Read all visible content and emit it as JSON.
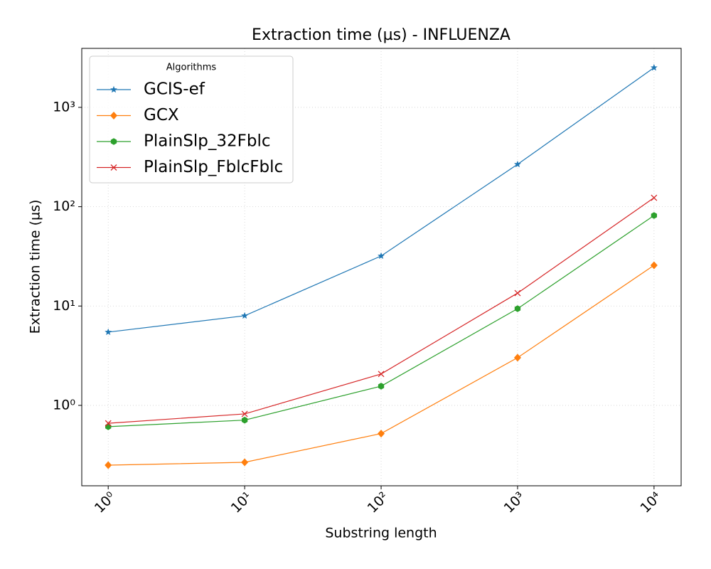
{
  "chart_data": {
    "type": "line",
    "title": "Extraction time (µs) - INFLUENZA",
    "xlabel": "Substring length",
    "ylabel": "Extraction time (µs)",
    "xscale": "log",
    "yscale": "log",
    "grid": true,
    "legend_title": "Algorithms",
    "legend_loc": "upper left",
    "x": [
      1,
      10,
      100,
      1000,
      10000
    ],
    "xlim": [
      0.64,
      15800
    ],
    "ylim": [
      0.155,
      3925
    ],
    "xticks": [
      {
        "value": 1,
        "label": "10⁰"
      },
      {
        "value": 10,
        "label": "10¹"
      },
      {
        "value": 100,
        "label": "10²"
      },
      {
        "value": 1000,
        "label": "10³"
      },
      {
        "value": 10000,
        "label": "10⁴"
      }
    ],
    "yticks": [
      {
        "value": 1,
        "label": "10⁰"
      },
      {
        "value": 10,
        "label": "10¹"
      },
      {
        "value": 100,
        "label": "10²"
      },
      {
        "value": 1000,
        "label": "10³"
      }
    ],
    "series": [
      {
        "name": "GCIS-ef",
        "color": "#1f77b4",
        "marker": "star",
        "values": [
          5.46,
          7.98,
          31.9,
          267,
          2510
        ]
      },
      {
        "name": "GCX",
        "color": "#ff7f0e",
        "marker": "diamond",
        "values": [
          0.25,
          0.267,
          0.52,
          3.02,
          25.7
        ]
      },
      {
        "name": "PlainSlp_32Fblc",
        "color": "#2ca02c",
        "marker": "hexagon",
        "values": [
          0.61,
          0.71,
          1.56,
          9.4,
          81.5
        ]
      },
      {
        "name": "PlainSlp_FblcFblc",
        "color": "#d62728",
        "marker": "x",
        "values": [
          0.66,
          0.82,
          2.07,
          13.5,
          123
        ]
      }
    ]
  }
}
